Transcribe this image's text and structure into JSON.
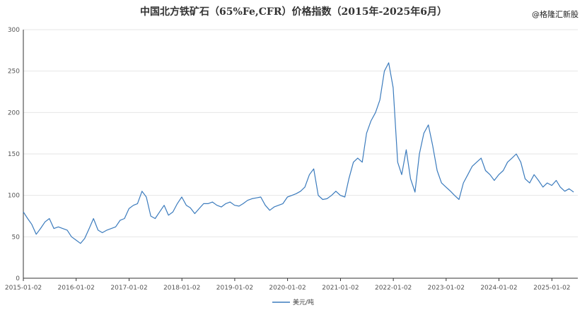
{
  "header": {
    "title": "中国北方铁矿石（65%Fe,CFR）价格指数（2015年-2025年6月）"
  },
  "watermark": "@格隆汇新股",
  "colors": {
    "line": "#3b7bbd",
    "grid": "#e6e6e6",
    "axis": "#333333"
  },
  "chart_data": {
    "type": "line",
    "title": "中国北方铁矿石（65%Fe,CFR）价格指数（2015年-2025年6月）",
    "xlabel": "",
    "ylabel": "",
    "ylim": [
      0,
      300
    ],
    "yticks": [
      0,
      50,
      100,
      150,
      200,
      250,
      300
    ],
    "xticks": [
      "2015-01-02",
      "2016-01-02",
      "2017-01-02",
      "2018-01-02",
      "2019-01-02",
      "2020-01-02",
      "2021-01-02",
      "2022-01-02",
      "2023-01-02",
      "2024-01-02",
      "2025-01-02"
    ],
    "grid": "horizontal",
    "legend": "bottom-center",
    "series": [
      {
        "name": "美元/吨",
        "x": [
          "2015-01-02",
          "2015-02-01",
          "2015-03-01",
          "2015-04-01",
          "2015-05-01",
          "2015-06-01",
          "2015-07-01",
          "2015-08-01",
          "2015-09-01",
          "2015-10-01",
          "2015-11-01",
          "2015-12-01",
          "2016-01-01",
          "2016-02-01",
          "2016-03-01",
          "2016-04-01",
          "2016-05-01",
          "2016-06-01",
          "2016-07-01",
          "2016-08-01",
          "2016-09-01",
          "2016-10-01",
          "2016-11-01",
          "2016-12-01",
          "2017-01-01",
          "2017-02-01",
          "2017-03-01",
          "2017-04-01",
          "2017-05-01",
          "2017-06-01",
          "2017-07-01",
          "2017-08-01",
          "2017-09-01",
          "2017-10-01",
          "2017-11-01",
          "2017-12-01",
          "2018-01-01",
          "2018-02-01",
          "2018-03-01",
          "2018-04-01",
          "2018-05-01",
          "2018-06-01",
          "2018-07-01",
          "2018-08-01",
          "2018-09-01",
          "2018-10-01",
          "2018-11-01",
          "2018-12-01",
          "2019-01-01",
          "2019-02-01",
          "2019-03-01",
          "2019-04-01",
          "2019-05-01",
          "2019-06-01",
          "2019-07-01",
          "2019-08-01",
          "2019-09-01",
          "2019-10-01",
          "2019-11-01",
          "2019-12-01",
          "2020-01-01",
          "2020-02-01",
          "2020-03-01",
          "2020-04-01",
          "2020-05-01",
          "2020-06-01",
          "2020-07-01",
          "2020-08-01",
          "2020-09-01",
          "2020-10-01",
          "2020-11-01",
          "2020-12-01",
          "2021-01-01",
          "2021-02-01",
          "2021-03-01",
          "2021-04-01",
          "2021-05-01",
          "2021-06-01",
          "2021-07-01",
          "2021-08-01",
          "2021-09-01",
          "2021-10-01",
          "2021-11-01",
          "2021-12-01",
          "2022-01-01",
          "2022-02-01",
          "2022-03-01",
          "2022-04-01",
          "2022-05-01",
          "2022-06-01",
          "2022-07-01",
          "2022-08-01",
          "2022-09-01",
          "2022-10-01",
          "2022-11-01",
          "2022-12-01",
          "2023-01-01",
          "2023-02-01",
          "2023-03-01",
          "2023-04-01",
          "2023-05-01",
          "2023-06-01",
          "2023-07-01",
          "2023-08-01",
          "2023-09-01",
          "2023-10-01",
          "2023-11-01",
          "2023-12-01",
          "2024-01-01",
          "2024-02-01",
          "2024-03-01",
          "2024-04-01",
          "2024-05-01",
          "2024-06-01",
          "2024-07-01",
          "2024-08-01",
          "2024-09-01",
          "2024-10-01",
          "2024-11-01",
          "2024-12-01",
          "2025-01-01",
          "2025-02-01",
          "2025-03-01",
          "2025-04-01",
          "2025-05-01",
          "2025-06-01"
        ],
        "values": [
          80,
          72,
          65,
          53,
          60,
          68,
          72,
          60,
          62,
          60,
          58,
          50,
          46,
          42,
          48,
          60,
          72,
          58,
          55,
          58,
          60,
          62,
          70,
          72,
          84,
          88,
          90,
          105,
          98,
          75,
          72,
          80,
          88,
          76,
          80,
          90,
          98,
          88,
          85,
          78,
          84,
          90,
          90,
          92,
          88,
          86,
          90,
          92,
          88,
          87,
          90,
          94,
          96,
          97,
          98,
          88,
          82,
          86,
          88,
          90,
          98,
          100,
          102,
          105,
          110,
          125,
          132,
          100,
          95,
          96,
          100,
          105,
          100,
          98,
          120,
          140,
          145,
          140,
          175,
          190,
          200,
          215,
          250,
          260,
          230,
          140,
          125,
          155,
          120,
          104,
          150,
          175,
          185,
          160,
          130,
          115,
          110,
          105,
          100,
          95,
          115,
          125,
          135,
          140,
          145,
          130,
          125,
          118,
          125,
          130,
          140,
          145,
          150,
          140,
          120,
          115,
          125,
          118,
          110,
          115,
          112,
          118,
          110,
          105,
          108,
          104
        ]
      }
    ]
  },
  "legend": {
    "label": "美元/吨"
  }
}
